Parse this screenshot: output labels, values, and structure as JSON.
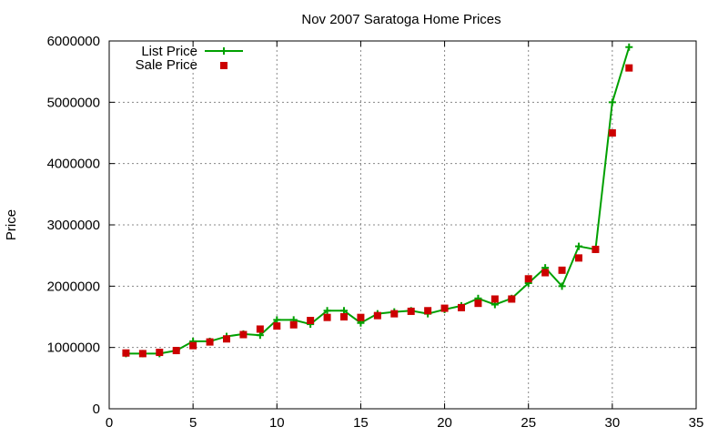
{
  "chart_data": {
    "type": "line",
    "title": "Nov 2007 Saratoga Home Prices",
    "xlabel": "",
    "ylabel": "Price",
    "xlim": [
      0,
      35
    ],
    "ylim": [
      0,
      6000000
    ],
    "x_ticks": [
      0,
      5,
      10,
      15,
      20,
      25,
      30,
      35
    ],
    "y_ticks": [
      0,
      1000000,
      2000000,
      3000000,
      4000000,
      5000000,
      6000000
    ],
    "grid": true,
    "legend_position": "top-left",
    "x": [
      1,
      2,
      3,
      4,
      5,
      6,
      7,
      8,
      9,
      10,
      11,
      12,
      13,
      14,
      15,
      16,
      17,
      18,
      19,
      20,
      21,
      22,
      23,
      24,
      25,
      26,
      27,
      28,
      29,
      30,
      31
    ],
    "series": [
      {
        "name": "List Price",
        "style": "line-plus",
        "color": "#00a000",
        "values": [
          900000,
          900000,
          900000,
          950000,
          1100000,
          1100000,
          1180000,
          1220000,
          1200000,
          1450000,
          1450000,
          1380000,
          1600000,
          1600000,
          1400000,
          1550000,
          1580000,
          1600000,
          1550000,
          1620000,
          1680000,
          1800000,
          1700000,
          1800000,
          2050000,
          2300000,
          2000000,
          2650000,
          2600000,
          5000000,
          5900000
        ]
      },
      {
        "name": "Sale Price",
        "style": "square",
        "color": "#cc0000",
        "values": [
          910000,
          900000,
          920000,
          950000,
          1030000,
          1090000,
          1140000,
          1210000,
          1300000,
          1350000,
          1370000,
          1440000,
          1490000,
          1500000,
          1490000,
          1520000,
          1550000,
          1590000,
          1600000,
          1640000,
          1650000,
          1720000,
          1790000,
          1790000,
          2120000,
          2220000,
          2260000,
          2460000,
          2600000,
          4500000,
          5560000
        ]
      }
    ]
  }
}
